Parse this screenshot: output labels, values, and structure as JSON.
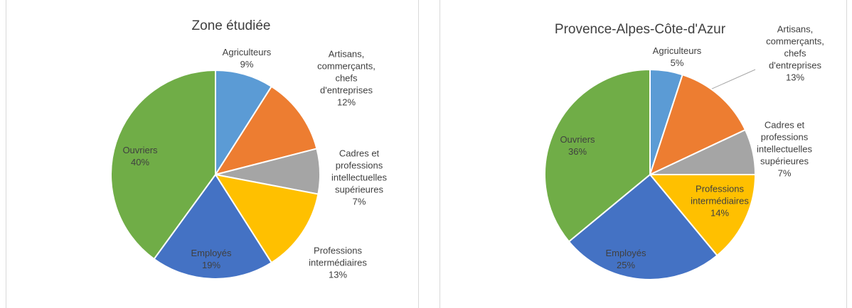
{
  "chart_data": [
    {
      "type": "pie",
      "title": "Zone étudiée",
      "categories": [
        "Agriculteurs",
        "Artisans, commerçants, chefs d'entreprises",
        "Cadres et professions intellectuelles supérieures",
        "Professions intermédiaires",
        "Employés",
        "Ouvriers"
      ],
      "values": [
        9,
        12,
        7,
        13,
        19,
        40
      ],
      "value_labels": [
        "9%",
        "12%",
        "7%",
        "13%",
        "19%",
        "40%"
      ],
      "colors": [
        "#5b9bd5",
        "#ed7d31",
        "#a5a5a5",
        "#ffc000",
        "#4472c4",
        "#70ad47"
      ]
    },
    {
      "type": "pie",
      "title": "Provence-Alpes-Côte-d'Azur",
      "categories": [
        "Agriculteurs",
        "Artisans, commerçants, chefs d'entreprises",
        "Cadres et professions intellectuelles supérieures",
        "Professions intermédiaires",
        "Employés",
        "Ouvriers"
      ],
      "values": [
        5,
        13,
        7,
        14,
        25,
        36
      ],
      "value_labels": [
        "5%",
        "13%",
        "7%",
        "14%",
        "25%",
        "36%"
      ],
      "colors": [
        "#5b9bd5",
        "#ed7d31",
        "#a5a5a5",
        "#ffc000",
        "#4472c4",
        "#70ad47"
      ]
    }
  ]
}
